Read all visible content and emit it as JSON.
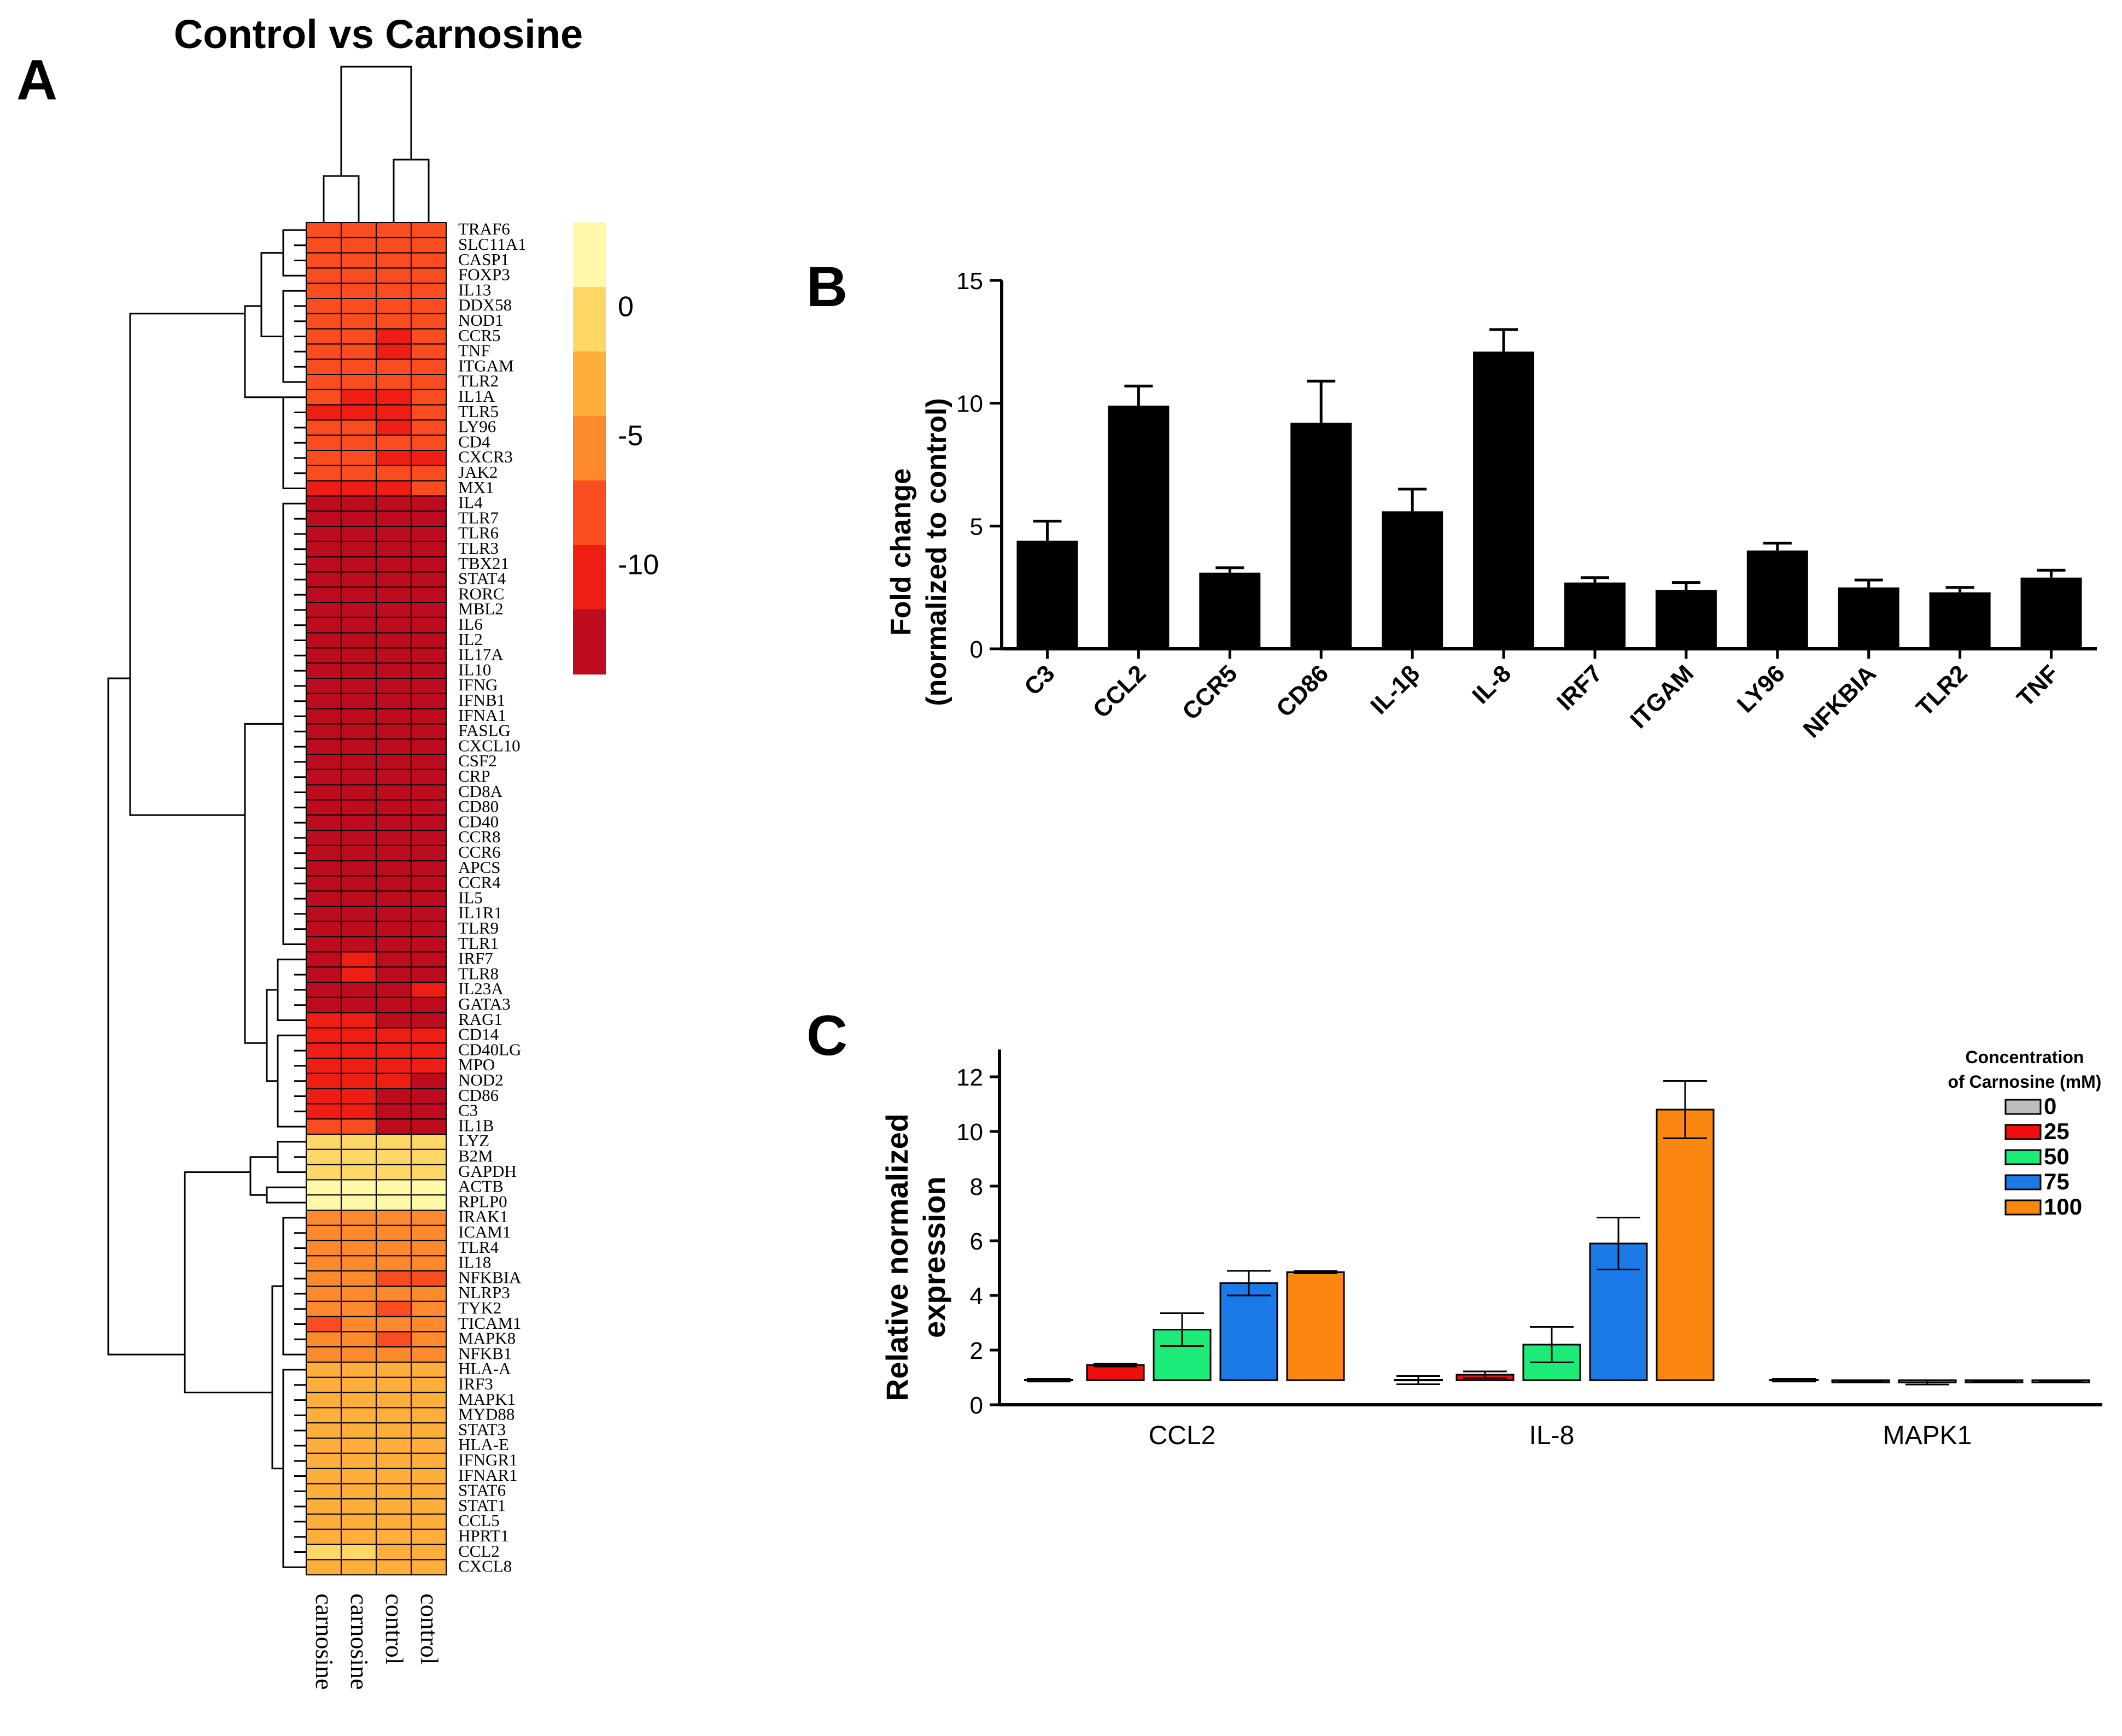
{
  "chart_data": [
    {
      "type": "heatmap",
      "panel_label": "A",
      "title": "Control vs Carnosine",
      "columns": [
        "carnosine",
        "carnosine",
        "control",
        "control"
      ],
      "rows": [
        "TRAF6",
        "SLC11A1",
        "CASP1",
        "FOXP3",
        "IL13",
        "DDX58",
        "NOD1",
        "CCR5",
        "TNF",
        "ITGAM",
        "TLR2",
        "IL1A",
        "TLR5",
        "LY96",
        "CD4",
        "CXCR3",
        "JAK2",
        "MX1",
        "IL4",
        "TLR7",
        "TLR6",
        "TLR3",
        "TBX21",
        "STAT4",
        "RORC",
        "MBL2",
        "IL6",
        "IL2",
        "IL17A",
        "IL10",
        "IFNG",
        "IFNB1",
        "IFNA1",
        "FASLG",
        "CXCL10",
        "CSF2",
        "CRP",
        "CD8A",
        "CD80",
        "CD40",
        "CCR8",
        "CCR6",
        "APCS",
        "CCR4",
        "IL5",
        "IL1R1",
        "TLR9",
        "TLR1",
        "IRF7",
        "TLR8",
        "IL23A",
        "GATA3",
        "RAG1",
        "CD14",
        "CD40LG",
        "MPO",
        "NOD2",
        "CD86",
        "C3",
        "IL1B",
        "LYZ",
        "B2M",
        "GAPDH",
        "ACTB",
        "RPLP0",
        "IRAK1",
        "ICAM1",
        "TLR4",
        "IL18",
        "NFKBIA",
        "NLRP3",
        "TYK2",
        "TICAM1",
        "MAPK8",
        "NFKB1",
        "HLA-A",
        "IRF3",
        "MAPK1",
        "MYD88",
        "STAT3",
        "HLA-E",
        "IFNGR1",
        "IFNAR1",
        "STAT6",
        "STAT1",
        "CCL5",
        "HPRT1",
        "CCL2",
        "CXCL8"
      ],
      "color_scale": {
        "ticks": [
          "0",
          "-5",
          "-10"
        ],
        "colors": [
          "#FFF8A8",
          "#FFD766",
          "#FDAE3B",
          "#FC8A2D",
          "#FA4D1F",
          "#EE1E14",
          "#BC0C1E"
        ]
      },
      "cell_levels": [
        [
          4,
          4,
          4,
          4
        ],
        [
          4,
          4,
          4,
          4
        ],
        [
          4,
          4,
          4,
          4
        ],
        [
          4,
          4,
          4,
          4
        ],
        [
          4,
          4,
          4,
          4
        ],
        [
          4,
          4,
          4,
          4
        ],
        [
          4,
          4,
          4,
          4
        ],
        [
          4,
          4,
          5,
          4
        ],
        [
          4,
          4,
          5,
          4
        ],
        [
          4,
          4,
          4,
          4
        ],
        [
          4,
          4,
          4,
          4
        ],
        [
          4,
          5,
          5,
          4
        ],
        [
          5,
          5,
          5,
          4
        ],
        [
          4,
          4,
          5,
          4
        ],
        [
          4,
          4,
          4,
          4
        ],
        [
          4,
          4,
          5,
          5
        ],
        [
          4,
          4,
          4,
          4
        ],
        [
          5,
          5,
          5,
          4
        ],
        [
          6,
          6,
          6,
          6
        ],
        [
          6,
          6,
          6,
          6
        ],
        [
          6,
          6,
          6,
          6
        ],
        [
          6,
          6,
          6,
          6
        ],
        [
          6,
          6,
          6,
          6
        ],
        [
          6,
          6,
          6,
          6
        ],
        [
          6,
          6,
          6,
          6
        ],
        [
          6,
          6,
          6,
          6
        ],
        [
          6,
          6,
          6,
          6
        ],
        [
          6,
          6,
          6,
          6
        ],
        [
          6,
          6,
          6,
          6
        ],
        [
          6,
          6,
          6,
          6
        ],
        [
          6,
          6,
          6,
          6
        ],
        [
          6,
          6,
          6,
          6
        ],
        [
          6,
          6,
          6,
          6
        ],
        [
          6,
          6,
          6,
          6
        ],
        [
          6,
          6,
          6,
          6
        ],
        [
          6,
          6,
          6,
          6
        ],
        [
          6,
          6,
          6,
          6
        ],
        [
          6,
          6,
          6,
          6
        ],
        [
          6,
          6,
          6,
          6
        ],
        [
          6,
          6,
          6,
          6
        ],
        [
          6,
          6,
          6,
          6
        ],
        [
          6,
          6,
          6,
          6
        ],
        [
          6,
          6,
          6,
          6
        ],
        [
          6,
          6,
          6,
          6
        ],
        [
          6,
          6,
          6,
          6
        ],
        [
          6,
          6,
          6,
          6
        ],
        [
          6,
          6,
          6,
          6
        ],
        [
          6,
          6,
          6,
          6
        ],
        [
          6,
          5,
          6,
          6
        ],
        [
          6,
          5,
          6,
          6
        ],
        [
          6,
          6,
          6,
          5
        ],
        [
          6,
          6,
          6,
          6
        ],
        [
          5,
          5,
          6,
          6
        ],
        [
          5,
          5,
          5,
          5
        ],
        [
          5,
          5,
          5,
          5
        ],
        [
          5,
          5,
          5,
          5
        ],
        [
          5,
          5,
          5,
          6
        ],
        [
          5,
          5,
          6,
          6
        ],
        [
          5,
          5,
          6,
          6
        ],
        [
          4,
          4,
          6,
          6
        ],
        [
          1,
          1,
          1,
          1
        ],
        [
          1,
          1,
          1,
          1
        ],
        [
          1,
          1,
          1,
          1
        ],
        [
          0,
          0,
          0,
          0
        ],
        [
          0,
          0,
          0,
          0
        ],
        [
          3,
          3,
          3,
          3
        ],
        [
          3,
          3,
          3,
          3
        ],
        [
          3,
          3,
          3,
          3
        ],
        [
          3,
          3,
          3,
          3
        ],
        [
          3,
          3,
          4,
          4
        ],
        [
          3,
          3,
          3,
          3
        ],
        [
          3,
          3,
          4,
          3
        ],
        [
          4,
          3,
          3,
          3
        ],
        [
          3,
          3,
          4,
          3
        ],
        [
          3,
          3,
          3,
          3
        ],
        [
          2,
          2,
          2,
          2
        ],
        [
          2,
          2,
          2,
          2
        ],
        [
          2,
          2,
          2,
          2
        ],
        [
          2,
          2,
          2,
          2
        ],
        [
          2,
          2,
          2,
          2
        ],
        [
          2,
          2,
          2,
          2
        ],
        [
          2,
          2,
          2,
          2
        ],
        [
          2,
          2,
          2,
          2
        ],
        [
          2,
          2,
          2,
          2
        ],
        [
          2,
          2,
          2,
          2
        ],
        [
          2,
          2,
          2,
          2
        ],
        [
          2,
          2,
          2,
          2
        ],
        [
          1,
          1,
          2,
          2
        ],
        [
          2,
          2,
          2,
          2
        ]
      ]
    },
    {
      "type": "bar",
      "panel_label": "B",
      "categories": [
        "C3",
        "CCL2",
        "CCR5",
        "CD86",
        "IL-1β",
        "IL-8",
        "IRF7",
        "ITGAM",
        "LY96",
        "NFKBIA",
        "TLR2",
        "TNF"
      ],
      "values": [
        4.4,
        9.9,
        3.1,
        9.2,
        5.6,
        12.1,
        2.7,
        2.4,
        4.0,
        2.5,
        2.3,
        2.9
      ],
      "errors": [
        0.8,
        0.8,
        0.2,
        1.7,
        0.9,
        0.9,
        0.2,
        0.3,
        0.3,
        0.3,
        0.2,
        0.3
      ],
      "ylabel": "Fold change",
      "ylabel2": "(normalized to control)",
      "ylim": [
        0,
        15
      ],
      "yticks": [
        0,
        5,
        10,
        15
      ],
      "color": "#000000"
    },
    {
      "type": "bar",
      "panel_label": "C",
      "categories": [
        "CCL2",
        "IL-8",
        "MAPK1"
      ],
      "ylabel": "Relative normalized",
      "ylabel2": "expression",
      "ylim": [
        0,
        13
      ],
      "yticks": [
        0,
        2,
        4,
        6,
        8,
        10,
        12
      ],
      "legend_title": "Concentration",
      "legend_title2": "of Carnosine (mM)",
      "baseline": 0.9,
      "series": [
        {
          "name": "0",
          "color": "#BDBDBD",
          "values": [
            0.9,
            0.9,
            0.9
          ],
          "errors": [
            0.05,
            0.15,
            0.05
          ]
        },
        {
          "name": "25",
          "color": "#F20D0D",
          "values": [
            1.45,
            1.1,
            0.85
          ],
          "errors": [
            0.05,
            0.12,
            0.03
          ]
        },
        {
          "name": "50",
          "color": "#1CEB77",
          "values": [
            2.75,
            2.2,
            0.82
          ],
          "errors": [
            0.6,
            0.65,
            0.08
          ]
        },
        {
          "name": "75",
          "color": "#1C7AE8",
          "values": [
            4.45,
            5.9,
            0.85
          ],
          "errors": [
            0.45,
            0.95,
            0.03
          ]
        },
        {
          "name": "100",
          "color": "#FA8710",
          "values": [
            4.85,
            10.8,
            0.85
          ],
          "errors": [
            0.04,
            1.05,
            0.03
          ]
        }
      ]
    }
  ]
}
